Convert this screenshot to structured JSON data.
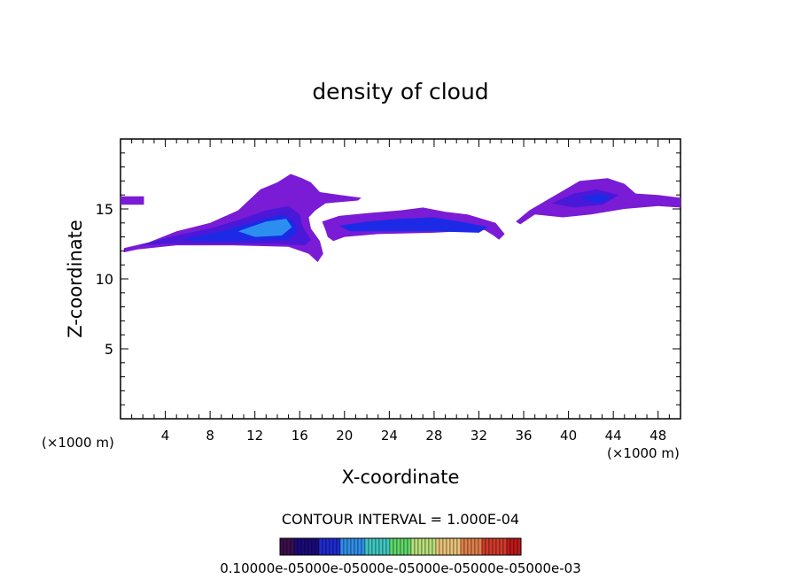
{
  "chart_data": {
    "type": "heatmap",
    "title": "density of cloud",
    "xlabel": "X-coordinate",
    "ylabel": "Z-coordinate",
    "x_unit_left": "(×1000 m)",
    "x_unit_right": "(×1000 m)",
    "xlim": [
      0,
      50
    ],
    "ylim": [
      0,
      20
    ],
    "x_ticks": [
      4,
      8,
      12,
      16,
      20,
      24,
      28,
      32,
      36,
      40,
      44,
      48
    ],
    "y_ticks": [
      5,
      10,
      15
    ],
    "contour_interval_text": "CONTOUR INTERVAL = 1.000E-04",
    "colorbar_label": "0.10000e-05000e-05000e-05000e-05000e-05000e-03",
    "colorbar_colors": [
      "#3a0f4a",
      "#1a0a7a",
      "#1e2bd0",
      "#2f8fe8",
      "#3ec8c0",
      "#5fd86a",
      "#b8e07a",
      "#e8c27a",
      "#e07f4a",
      "#d23a2a",
      "#c01818"
    ],
    "palette": {
      "low": "#7a1bd6",
      "mid": "#4a18d8",
      "high": "#1c2ae6",
      "peak": "#2c8ff0",
      "edge": "#9b2fcf"
    },
    "cells": [
      {
        "x": 0.5,
        "z": 15.6,
        "v": 1
      },
      {
        "x": 1.0,
        "z": 15.6,
        "v": 1
      },
      {
        "x": 1.5,
        "z": 15.6,
        "v": 1
      }
    ]
  }
}
